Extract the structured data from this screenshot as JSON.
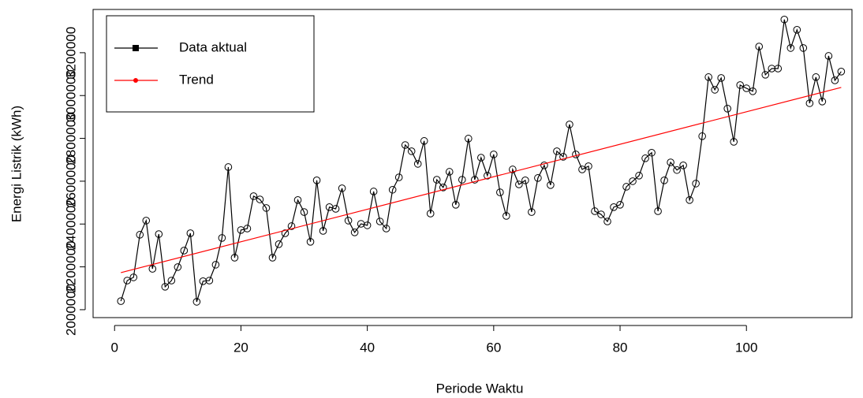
{
  "chart_data": {
    "type": "line",
    "xlabel": "Periode Waktu",
    "ylabel": "Energi Listrik (kWh)",
    "x": [
      1,
      2,
      3,
      4,
      5,
      6,
      7,
      8,
      9,
      10,
      11,
      12,
      13,
      14,
      15,
      16,
      17,
      18,
      19,
      20,
      21,
      22,
      23,
      24,
      25,
      26,
      27,
      28,
      29,
      30,
      31,
      32,
      33,
      34,
      35,
      36,
      37,
      38,
      39,
      40,
      41,
      42,
      43,
      44,
      45,
      46,
      47,
      48,
      49,
      50,
      51,
      52,
      53,
      54,
      55,
      56,
      57,
      58,
      59,
      60,
      61,
      62,
      63,
      64,
      65,
      66,
      67,
      68,
      69,
      70,
      71,
      72,
      73,
      74,
      75,
      76,
      77,
      78,
      79,
      80,
      81,
      82,
      83,
      84,
      85,
      86,
      87,
      88,
      89,
      90,
      91,
      92,
      93,
      94,
      95,
      96,
      97,
      98,
      99,
      100,
      101,
      102,
      103,
      104,
      105,
      106,
      107,
      108,
      109,
      110,
      111,
      112,
      113,
      114,
      115
    ],
    "series": [
      {
        "name": "Data aktual",
        "color": "#000000",
        "values": [
          2040000,
          2136000,
          2151000,
          2350000,
          2416000,
          2191000,
          2353000,
          2107000,
          2136000,
          2199000,
          2276000,
          2357000,
          2037000,
          2133000,
          2136000,
          2210000,
          2335000,
          2666000,
          2243000,
          2372000,
          2379000,
          2530000,
          2515000,
          2475000,
          2243000,
          2306000,
          2357000,
          2390000,
          2512000,
          2456000,
          2317000,
          2604000,
          2368000,
          2479000,
          2471000,
          2567000,
          2416000,
          2361000,
          2401000,
          2394000,
          2552000,
          2412000,
          2379000,
          2560000,
          2618000,
          2769000,
          2740000,
          2681000,
          2788000,
          2449000,
          2607000,
          2571000,
          2644000,
          2490000,
          2607000,
          2799000,
          2607000,
          2710000,
          2626000,
          2725000,
          2548000,
          2438000,
          2655000,
          2585000,
          2604000,
          2456000,
          2615000,
          2674000,
          2582000,
          2740000,
          2714000,
          2865000,
          2725000,
          2655000,
          2670000,
          2460000,
          2445000,
          2412000,
          2479000,
          2490000,
          2574000,
          2600000,
          2626000,
          2707000,
          2733000,
          2460000,
          2604000,
          2688000,
          2652000,
          2674000,
          2512000,
          2589000,
          2810000,
          3086000,
          3027000,
          3082000,
          2939000,
          2784000,
          3049000,
          3034000,
          3020000,
          3229000,
          3097000,
          3126000,
          3126000,
          3355000,
          3222000,
          3307000,
          3222000,
          2964000,
          3086000,
          2972000,
          3185000,
          3071000,
          3112000
        ]
      },
      {
        "name": "Trend",
        "color": "#ff0000",
        "x": [
          1,
          115
        ],
        "values": [
          2173000,
          3038000
        ]
      }
    ],
    "xlim": [
      -3.4,
      116.7
    ],
    "ylim": [
      1963000,
      3402000
    ],
    "xticks": [
      0,
      20,
      40,
      60,
      80,
      100
    ],
    "yticks": [
      2000000,
      2200000,
      2400000,
      2600000,
      2800000,
      3000000,
      3200000
    ],
    "legend": "upper left"
  }
}
